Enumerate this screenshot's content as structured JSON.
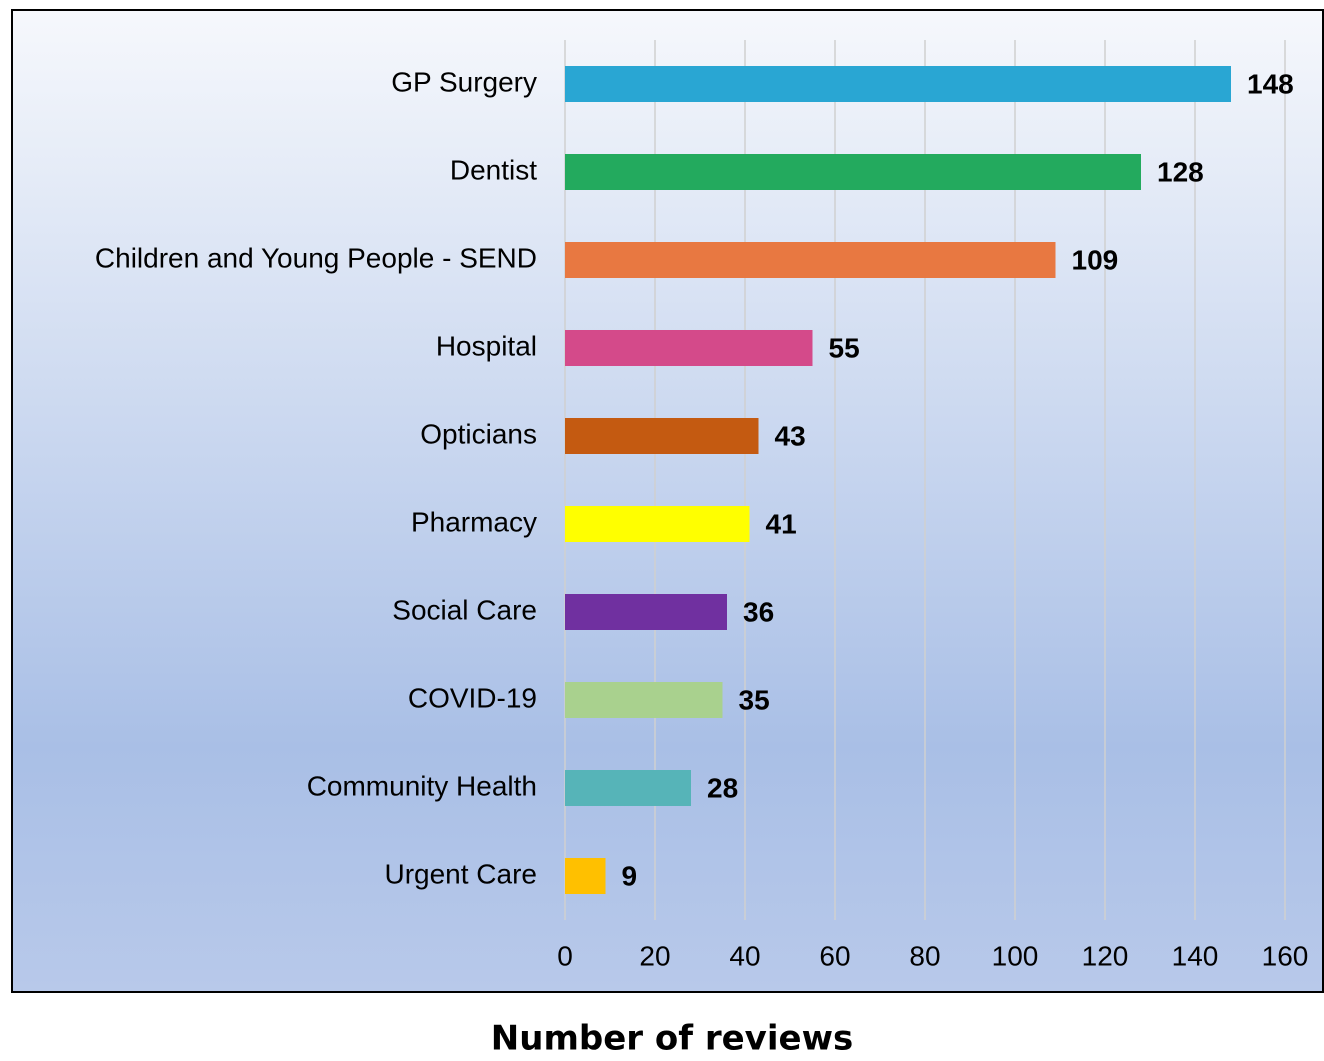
{
  "chart_data": {
    "type": "barh",
    "xlabel": "Number of reviews",
    "categories": [
      "GP Surgery",
      "Dentist",
      "Children and Young People - SEND",
      "Hospital",
      "Opticians",
      "Pharmacy",
      "Social Care",
      "COVID-19",
      "Community Health",
      "Urgent Care"
    ],
    "values": [
      148,
      128,
      109,
      55,
      43,
      41,
      36,
      35,
      28,
      9
    ],
    "colors": [
      "#29a6d3",
      "#23aa5e",
      "#e87841",
      "#d44a8a",
      "#c45a11",
      "#ffff00",
      "#7030a0",
      "#a9d18e",
      "#56b4b8",
      "#ffc000"
    ],
    "xlim": [
      0,
      160
    ],
    "xticks": [
      0,
      20,
      40,
      60,
      80,
      100,
      120,
      140,
      160
    ],
    "grid": true
  }
}
